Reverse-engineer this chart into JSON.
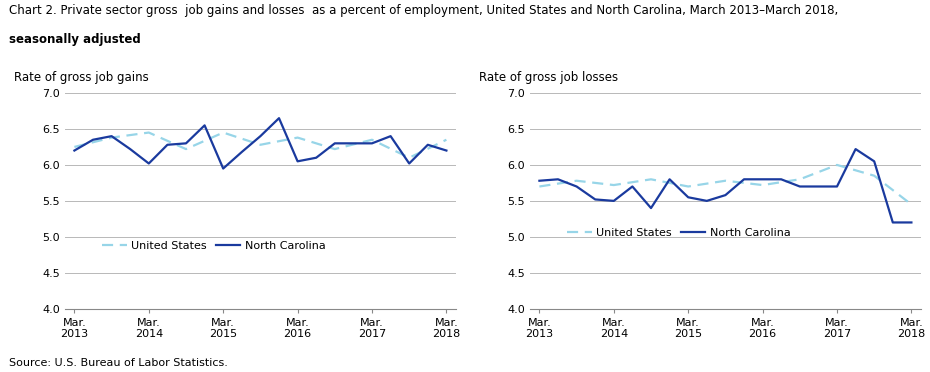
{
  "title_line1": "Chart 2. Private sector gross  job gains and losses  as a percent of employment, United States and North Carolina, March 2013–March 2018,",
  "title_line2": "seasonally adjusted",
  "source": "Source: U.S. Bureau of Labor Statistics.",
  "subplot1_ylabel": "Rate of gross job gains",
  "subplot2_ylabel": "Rate of gross job losses",
  "xtick_labels": [
    "Mar.\n2013",
    "Mar.\n2014",
    "Mar.\n2015",
    "Mar.\n2016",
    "Mar.\n2017",
    "Mar.\n2018"
  ],
  "ylim": [
    4.0,
    7.0
  ],
  "yticks": [
    4.0,
    4.5,
    5.0,
    5.5,
    6.0,
    6.5,
    7.0
  ],
  "us_color": "#97d5e8",
  "nc_color": "#1a3a9e",
  "gains_us_x": [
    0,
    2,
    4,
    6,
    8,
    10,
    12,
    14,
    16,
    18,
    20
  ],
  "gains_us_y": [
    6.25,
    6.38,
    6.45,
    6.22,
    6.45,
    6.28,
    6.38,
    6.22,
    6.35,
    6.1,
    6.35
  ],
  "gains_nc_x": [
    0,
    1,
    2,
    3,
    4,
    5,
    6,
    7,
    8,
    9,
    10,
    11,
    12,
    13,
    14,
    15,
    16,
    17,
    18,
    19,
    20
  ],
  "gains_nc_y": [
    6.2,
    6.35,
    6.4,
    6.22,
    6.02,
    6.28,
    6.3,
    6.55,
    5.95,
    6.18,
    6.4,
    6.65,
    6.05,
    6.1,
    6.3,
    6.3,
    6.3,
    6.4,
    6.02,
    6.28,
    6.2
  ],
  "losses_us_x": [
    0,
    2,
    4,
    6,
    8,
    10,
    12,
    14,
    16,
    18,
    20
  ],
  "losses_us_y": [
    5.7,
    5.78,
    5.72,
    5.8,
    5.7,
    5.78,
    5.72,
    5.8,
    6.0,
    5.85,
    5.45
  ],
  "losses_nc_x": [
    0,
    1,
    2,
    3,
    4,
    5,
    6,
    7,
    8,
    9,
    10,
    11,
    12,
    13,
    14,
    15,
    16,
    17,
    18,
    19,
    20
  ],
  "losses_nc_y": [
    5.78,
    5.8,
    5.7,
    5.52,
    5.5,
    5.7,
    5.4,
    5.8,
    5.55,
    5.5,
    5.58,
    5.8,
    5.8,
    5.8,
    5.7,
    5.7,
    5.7,
    6.22,
    6.05,
    5.2,
    5.2
  ],
  "legend_us": "United States",
  "legend_nc": "North Carolina"
}
